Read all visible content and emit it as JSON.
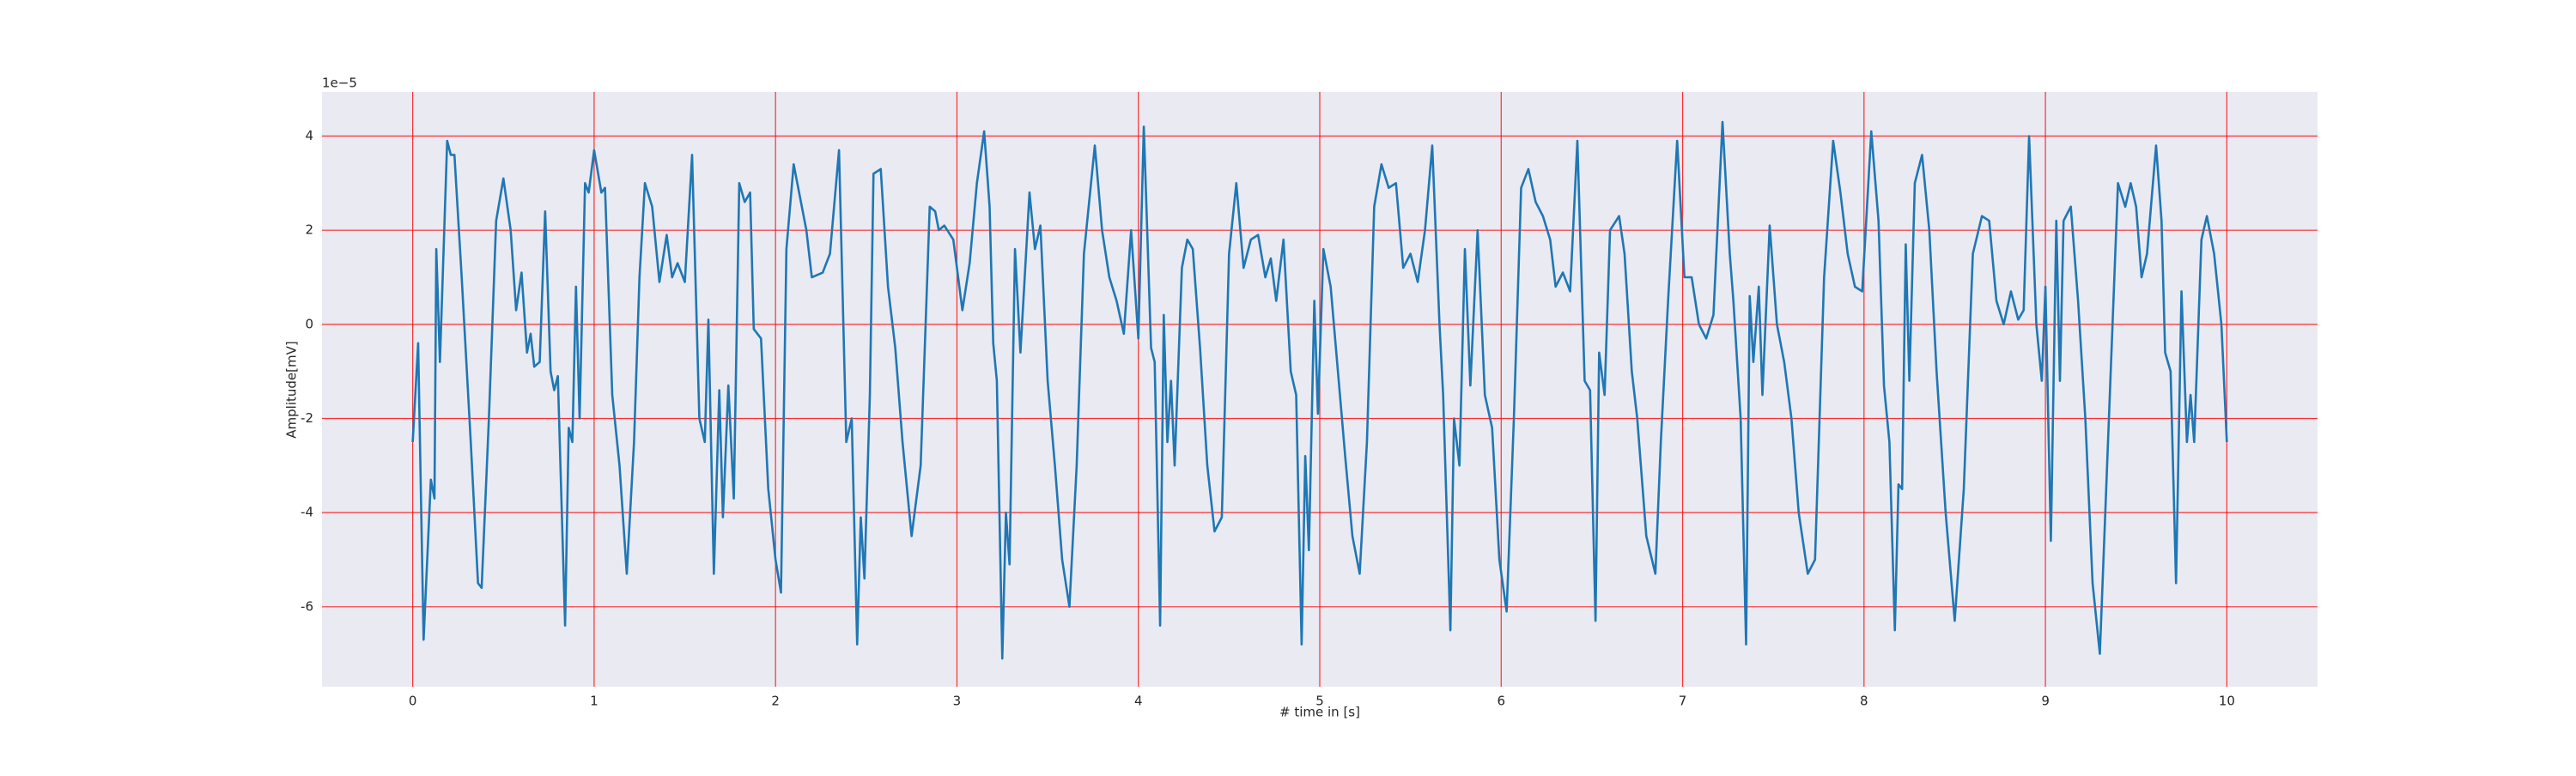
{
  "chart_data": {
    "type": "line",
    "xlabel": "# time in [s]",
    "ylabel": "Amplitude[mV]",
    "offset_text": "1e−5",
    "color": "#1f77b4",
    "background": "#eaeaf2",
    "grid": true,
    "grid_color": "#ff0000",
    "xlim": [
      -0.5,
      10.5
    ],
    "ylim": [
      -7.7,
      4.94
    ],
    "xticks": [
      0,
      1,
      2,
      3,
      4,
      5,
      6,
      7,
      8,
      9,
      10
    ],
    "yticks": [
      -6,
      -4,
      -2,
      0,
      2,
      4
    ],
    "x": [
      0,
      0.03,
      0.06,
      0.1,
      0.12,
      0.13,
      0.15,
      0.19,
      0.21,
      0.23,
      0.27,
      0.32,
      0.36,
      0.38,
      0.42,
      0.46,
      0.5,
      0.54,
      0.57,
      0.6,
      0.63,
      0.65,
      0.67,
      0.7,
      0.73,
      0.76,
      0.78,
      0.8,
      0.84,
      0.86,
      0.88,
      0.9,
      0.92,
      0.95,
      0.97,
      1.0,
      1.04,
      1.06,
      1.1,
      1.14,
      1.18,
      1.22,
      1.25,
      1.28,
      1.32,
      1.36,
      1.4,
      1.43,
      1.46,
      1.5,
      1.54,
      1.58,
      1.61,
      1.63,
      1.66,
      1.69,
      1.71,
      1.74,
      1.77,
      1.8,
      1.83,
      1.86,
      1.88,
      1.92,
      1.96,
      2.0,
      2.03,
      2.06,
      2.1,
      2.14,
      2.17,
      2.2,
      2.26,
      2.3,
      2.35,
      2.39,
      2.42,
      2.45,
      2.47,
      2.49,
      2.52,
      2.54,
      2.58,
      2.62,
      2.66,
      2.7,
      2.75,
      2.8,
      2.85,
      2.88,
      2.9,
      2.93,
      2.98,
      3.03,
      3.07,
      3.11,
      3.15,
      3.18,
      3.2,
      3.22,
      3.25,
      3.27,
      3.29,
      3.32,
      3.35,
      3.4,
      3.43,
      3.46,
      3.5,
      3.54,
      3.58,
      3.62,
      3.66,
      3.7,
      3.76,
      3.8,
      3.84,
      3.88,
      3.92,
      3.96,
      4.0,
      4.03,
      4.07,
      4.09,
      4.12,
      4.14,
      4.16,
      4.18,
      4.2,
      4.24,
      4.27,
      4.3,
      4.34,
      4.38,
      4.42,
      4.46,
      4.5,
      4.54,
      4.58,
      4.62,
      4.66,
      4.7,
      4.73,
      4.76,
      4.8,
      4.84,
      4.87,
      4.9,
      4.92,
      4.94,
      4.97,
      4.99,
      5.02,
      5.06,
      5.1,
      5.14,
      5.18,
      5.22,
      5.26,
      5.3,
      5.34,
      5.38,
      5.42,
      5.46,
      5.5,
      5.54,
      5.58,
      5.62,
      5.66,
      5.68,
      5.72,
      5.74,
      5.77,
      5.8,
      5.83,
      5.87,
      5.91,
      5.95,
      5.99,
      6.03,
      6.07,
      6.11,
      6.15,
      6.19,
      6.23,
      6.27,
      6.3,
      6.34,
      6.38,
      6.42,
      6.46,
      6.49,
      6.52,
      6.54,
      6.57,
      6.6,
      6.65,
      6.68,
      6.72,
      6.75,
      6.8,
      6.85,
      6.88,
      6.92,
      6.97,
      7.01,
      7.05,
      7.09,
      7.13,
      7.17,
      7.22,
      7.26,
      7.28,
      7.32,
      7.35,
      7.37,
      7.39,
      7.42,
      7.44,
      7.48,
      7.52,
      7.56,
      7.6,
      7.64,
      7.69,
      7.73,
      7.78,
      7.83,
      7.87,
      7.91,
      7.95,
      7.99,
      8.04,
      8.08,
      8.11,
      8.14,
      8.17,
      8.19,
      8.21,
      8.23,
      8.25,
      8.28,
      8.32,
      8.36,
      8.4,
      8.45,
      8.5,
      8.55,
      8.6,
      8.65,
      8.69,
      8.73,
      8.77,
      8.81,
      8.85,
      8.88,
      8.91,
      8.95,
      8.98,
      9.0,
      9.03,
      9.06,
      9.08,
      9.1,
      9.14,
      9.18,
      9.22,
      9.26,
      9.3,
      9.34,
      9.4,
      9.44,
      9.47,
      9.5,
      9.53,
      9.56,
      9.61,
      9.64,
      9.66,
      9.69,
      9.72,
      9.75,
      9.78,
      9.8,
      9.82,
      9.86,
      9.89,
      9.93,
      9.97,
      10.0
    ],
    "values": [
      -2.5,
      -0.4,
      -6.7,
      -3.3,
      -3.7,
      1.6,
      -0.8,
      3.9,
      3.6,
      3.6,
      1.0,
      -2.5,
      -5.5,
      -5.6,
      -2,
      2.2,
      3.1,
      2.0,
      0.3,
      1.1,
      -0.6,
      -0.2,
      -0.9,
      -0.8,
      2.4,
      -1.0,
      -1.4,
      -1.1,
      -6.4,
      -2.2,
      -2.5,
      0.8,
      -2.0,
      3.0,
      2.8,
      3.7,
      2.8,
      2.9,
      -1.5,
      -3.0,
      -5.3,
      -2.5,
      1.0,
      3.0,
      2.5,
      0.9,
      1.9,
      1.0,
      1.3,
      0.9,
      3.6,
      -2.0,
      -2.5,
      0.1,
      -5.3,
      -1.4,
      -4.1,
      -1.3,
      -3.7,
      3.0,
      2.6,
      2.8,
      -0.1,
      -0.3,
      -3.5,
      -5.0,
      -5.7,
      1.6,
      3.4,
      2.6,
      2.0,
      1.0,
      1.1,
      1.5,
      3.7,
      -2.5,
      -2.0,
      -6.8,
      -4.1,
      -5.4,
      -1.5,
      3.2,
      3.3,
      0.8,
      -0.5,
      -2.5,
      -4.5,
      -3.0,
      2.5,
      2.4,
      2.0,
      2.1,
      1.8,
      0.3,
      1.3,
      3.0,
      4.1,
      2.5,
      -0.4,
      -1.2,
      -7.1,
      -4.0,
      -5.1,
      1.6,
      -0.6,
      2.8,
      1.6,
      2.1,
      -1.2,
      -3.0,
      -5.0,
      -6.0,
      -3.0,
      1.5,
      3.8,
      2.0,
      1.0,
      0.5,
      -0.2,
      2.0,
      -0.3,
      4.2,
      -0.5,
      -0.8,
      -6.4,
      0.2,
      -2.5,
      -1.2,
      -3.0,
      1.2,
      1.8,
      1.6,
      -0.5,
      -3.0,
      -4.4,
      -4.1,
      1.5,
      3.0,
      1.2,
      1.8,
      1.9,
      1.0,
      1.4,
      0.5,
      1.8,
      -1.0,
      -1.5,
      -6.8,
      -2.8,
      -4.8,
      0.5,
      -1.9,
      1.6,
      0.8,
      -1.0,
      -2.8,
      -4.5,
      -5.3,
      -2.5,
      2.5,
      3.4,
      2.9,
      3.0,
      1.2,
      1.5,
      0.9,
      2.0,
      3.8,
      0.0,
      -1.5,
      -6.5,
      -2.0,
      -3.0,
      1.6,
      -1.3,
      2.0,
      -1.5,
      -2.2,
      -5.0,
      -6.1,
      -2.0,
      2.9,
      3.3,
      2.6,
      2.3,
      1.8,
      0.8,
      1.1,
      0.7,
      3.9,
      -1.2,
      -1.4,
      -6.3,
      -0.6,
      -1.5,
      2.0,
      2.3,
      1.5,
      -1.0,
      -2.0,
      -4.5,
      -5.3,
      -2.5,
      0.5,
      3.9,
      1.0,
      1.0,
      0.0,
      -0.3,
      0.2,
      4.3,
      1.5,
      0.5,
      -2.0,
      -6.8,
      0.6,
      -0.8,
      0.8,
      -1.5,
      2.1,
      0.0,
      -0.8,
      -2.0,
      -4.0,
      -5.3,
      -5.0,
      1.0,
      3.9,
      2.8,
      1.5,
      0.8,
      0.7,
      4.1,
      2.2,
      -1.3,
      -2.5,
      -6.5,
      -3.4,
      -3.5,
      1.7,
      -1.2,
      3.0,
      3.6,
      2.0,
      -1.0,
      -4.0,
      -6.3,
      -3.5,
      1.5,
      2.3,
      2.2,
      0.5,
      0.0,
      0.7,
      0.1,
      0.3,
      4.0,
      0.0,
      -1.2,
      0.8,
      -4.6,
      2.2,
      -1.2,
      2.2,
      2.5,
      0.5,
      -2.0,
      -5.5,
      -7.0,
      -3.0,
      3.0,
      2.5,
      3.0,
      2.5,
      1.0,
      1.5,
      3.8,
      2.2,
      -0.6,
      -1.0,
      -5.5,
      0.7,
      -2.5,
      -1.5,
      -2.5,
      1.8,
      2.3,
      1.5,
      0.0,
      -2.5
    ]
  }
}
